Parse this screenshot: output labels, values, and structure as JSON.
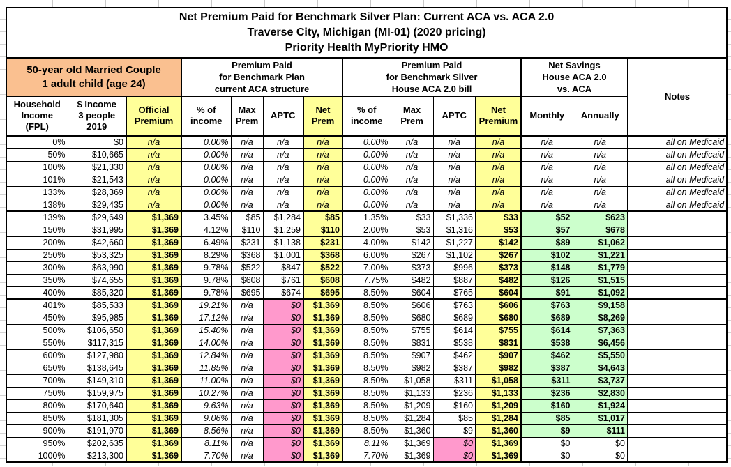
{
  "window": {
    "title_lines": [
      "Net Premium Paid for Benchmark Silver Plan: Current ACA vs. ACA 2.0",
      "Traverse City, Michigan (MI-01) (2020 pricing)",
      "Priority Health MyPriority HMO"
    ]
  },
  "table": {
    "demographic_header": "50-year old Married Couple\n1 adult child (age 24)",
    "section_headers": {
      "aca_current": "Premium Paid\nfor Benchmark Plan\ncurrent ACA structure",
      "aca_20": "Premium Paid\nfor Benchmark Silver\nHouse ACA 2.0 bill",
      "net_savings": "Net Savings\nHouse ACA 2.0\nvs. ACA",
      "notes": "Notes"
    },
    "column_headers": [
      "Household\nIncome\n(FPL)",
      "$ Income\n3 people\n2019",
      "Official\nPremium",
      "% of\nincome",
      "Max\nPrem",
      "APTC",
      "Net\nPrem",
      "% of\nincome",
      "Max\nPrem",
      "APTC",
      "Net\nPremium",
      "Monthly",
      "Annually"
    ],
    "column_keys": [
      "fpl",
      "income",
      "official-premium",
      "pct-income-aca",
      "max-prem-aca",
      "aptc-aca",
      "net-prem-aca",
      "pct-income-aca2",
      "max-prem-aca2",
      "aptc-aca2",
      "net-premium-aca2",
      "savings-monthly",
      "savings-annually",
      "notes"
    ],
    "rows": [
      {
        "group": "medicaid",
        "cells": [
          "0%",
          "$0",
          "n/a",
          "0.00%",
          "n/a",
          "n/a",
          "n/a",
          "0.00%",
          "n/a",
          "n/a",
          "n/a",
          "n/a",
          "n/a",
          "all on Medicaid"
        ]
      },
      {
        "group": "medicaid",
        "cells": [
          "50%",
          "$10,665",
          "n/a",
          "0.00%",
          "n/a",
          "n/a",
          "n/a",
          "0.00%",
          "n/a",
          "n/a",
          "n/a",
          "n/a",
          "n/a",
          "all on Medicaid"
        ]
      },
      {
        "group": "medicaid",
        "cells": [
          "100%",
          "$21,330",
          "n/a",
          "0.00%",
          "n/a",
          "n/a",
          "n/a",
          "0.00%",
          "n/a",
          "n/a",
          "n/a",
          "n/a",
          "n/a",
          "all on Medicaid"
        ]
      },
      {
        "group": "medicaid",
        "cells": [
          "101%",
          "$21,543",
          "n/a",
          "0.00%",
          "n/a",
          "n/a",
          "n/a",
          "0.00%",
          "n/a",
          "n/a",
          "n/a",
          "n/a",
          "n/a",
          "all on Medicaid"
        ]
      },
      {
        "group": "medicaid",
        "cells": [
          "133%",
          "$28,369",
          "n/a",
          "0.00%",
          "n/a",
          "n/a",
          "n/a",
          "0.00%",
          "n/a",
          "n/a",
          "n/a",
          "n/a",
          "n/a",
          "all on Medicaid"
        ]
      },
      {
        "group": "medicaid",
        "cells": [
          "138%",
          "$29,435",
          "n/a",
          "0.00%",
          "n/a",
          "n/a",
          "n/a",
          "0.00%",
          "n/a",
          "n/a",
          "n/a",
          "n/a",
          "n/a",
          "all on Medicaid"
        ]
      },
      {
        "group": "subsidy",
        "cells": [
          "139%",
          "$29,649",
          "$1,369",
          "3.45%",
          "$85",
          "$1,284",
          "$85",
          "1.35%",
          "$33",
          "$1,336",
          "$33",
          "$52",
          "$623",
          ""
        ]
      },
      {
        "group": "subsidy",
        "cells": [
          "150%",
          "$31,995",
          "$1,369",
          "4.12%",
          "$110",
          "$1,259",
          "$110",
          "2.00%",
          "$53",
          "$1,316",
          "$53",
          "$57",
          "$678",
          ""
        ]
      },
      {
        "group": "subsidy",
        "cells": [
          "200%",
          "$42,660",
          "$1,369",
          "6.49%",
          "$231",
          "$1,138",
          "$231",
          "4.00%",
          "$142",
          "$1,227",
          "$142",
          "$89",
          "$1,062",
          ""
        ]
      },
      {
        "group": "subsidy",
        "cells": [
          "250%",
          "$53,325",
          "$1,369",
          "8.29%",
          "$368",
          "$1,001",
          "$368",
          "6.00%",
          "$267",
          "$1,102",
          "$267",
          "$102",
          "$1,221",
          ""
        ]
      },
      {
        "group": "subsidy",
        "cells": [
          "300%",
          "$63,990",
          "$1,369",
          "9.78%",
          "$522",
          "$847",
          "$522",
          "7.00%",
          "$373",
          "$996",
          "$373",
          "$148",
          "$1,779",
          ""
        ]
      },
      {
        "group": "subsidy",
        "cells": [
          "350%",
          "$74,655",
          "$1,369",
          "9.78%",
          "$608",
          "$761",
          "$608",
          "7.75%",
          "$482",
          "$887",
          "$482",
          "$126",
          "$1,515",
          ""
        ]
      },
      {
        "group": "subsidy",
        "cells": [
          "400%",
          "$85,320",
          "$1,369",
          "9.78%",
          "$695",
          "$674",
          "$695",
          "8.50%",
          "$604",
          "$765",
          "$604",
          "$91",
          "$1,092",
          ""
        ]
      },
      {
        "group": "aptc2_only",
        "cells": [
          "401%",
          "$85,533",
          "$1,369",
          "19.21%",
          "n/a",
          "$0",
          "$1,369",
          "8.50%",
          "$606",
          "$763",
          "$606",
          "$763",
          "$9,158",
          ""
        ]
      },
      {
        "group": "aptc2_only",
        "cells": [
          "450%",
          "$95,985",
          "$1,369",
          "17.12%",
          "n/a",
          "$0",
          "$1,369",
          "8.50%",
          "$680",
          "$689",
          "$680",
          "$689",
          "$8,269",
          ""
        ]
      },
      {
        "group": "aptc2_only",
        "cells": [
          "500%",
          "$106,650",
          "$1,369",
          "15.40%",
          "n/a",
          "$0",
          "$1,369",
          "8.50%",
          "$755",
          "$614",
          "$755",
          "$614",
          "$7,363",
          ""
        ]
      },
      {
        "group": "aptc2_only",
        "cells": [
          "550%",
          "$117,315",
          "$1,369",
          "14.00%",
          "n/a",
          "$0",
          "$1,369",
          "8.50%",
          "$831",
          "$538",
          "$831",
          "$538",
          "$6,456",
          ""
        ]
      },
      {
        "group": "aptc2_only",
        "cells": [
          "600%",
          "$127,980",
          "$1,369",
          "12.84%",
          "n/a",
          "$0",
          "$1,369",
          "8.50%",
          "$907",
          "$462",
          "$907",
          "$462",
          "$5,550",
          ""
        ]
      },
      {
        "group": "aptc2_only",
        "cells": [
          "650%",
          "$138,645",
          "$1,369",
          "11.85%",
          "n/a",
          "$0",
          "$1,369",
          "8.50%",
          "$982",
          "$387",
          "$982",
          "$387",
          "$4,643",
          ""
        ]
      },
      {
        "group": "aptc2_only",
        "cells": [
          "700%",
          "$149,310",
          "$1,369",
          "11.00%",
          "n/a",
          "$0",
          "$1,369",
          "8.50%",
          "$1,058",
          "$311",
          "$1,058",
          "$311",
          "$3,737",
          ""
        ]
      },
      {
        "group": "aptc2_only",
        "cells": [
          "750%",
          "$159,975",
          "$1,369",
          "10.27%",
          "n/a",
          "$0",
          "$1,369",
          "8.50%",
          "$1,133",
          "$236",
          "$1,133",
          "$236",
          "$2,830",
          ""
        ]
      },
      {
        "group": "aptc2_only",
        "cells": [
          "800%",
          "$170,640",
          "$1,369",
          "9.63%",
          "n/a",
          "$0",
          "$1,369",
          "8.50%",
          "$1,209",
          "$160",
          "$1,209",
          "$160",
          "$1,924",
          ""
        ]
      },
      {
        "group": "aptc2_only",
        "cells": [
          "850%",
          "$181,305",
          "$1,369",
          "9.06%",
          "n/a",
          "$0",
          "$1,369",
          "8.50%",
          "$1,284",
          "$85",
          "$1,284",
          "$85",
          "$1,017",
          ""
        ]
      },
      {
        "group": "aptc2_only",
        "cells": [
          "900%",
          "$191,970",
          "$1,369",
          "8.56%",
          "n/a",
          "$0",
          "$1,369",
          "8.50%",
          "$1,360",
          "$9",
          "$1,360",
          "$9",
          "$111",
          ""
        ]
      },
      {
        "group": "no_subsidy",
        "cells": [
          "950%",
          "$202,635",
          "$1,369",
          "8.11%",
          "n/a",
          "$0",
          "$1,369",
          "8.11%",
          "$1,369",
          "$0",
          "$1,369",
          "$0",
          "$0",
          ""
        ]
      },
      {
        "group": "no_subsidy",
        "cells": [
          "1000%",
          "$213,300",
          "$1,369",
          "7.70%",
          "n/a",
          "$0",
          "$1,369",
          "7.70%",
          "$1,369",
          "$0",
          "$1,369",
          "$0",
          "$0",
          ""
        ]
      }
    ]
  },
  "colors": {
    "yellow": "#FFFF99",
    "pink": "#FF99CC",
    "green": "#CCFFCC",
    "orange": "#FAC090"
  }
}
